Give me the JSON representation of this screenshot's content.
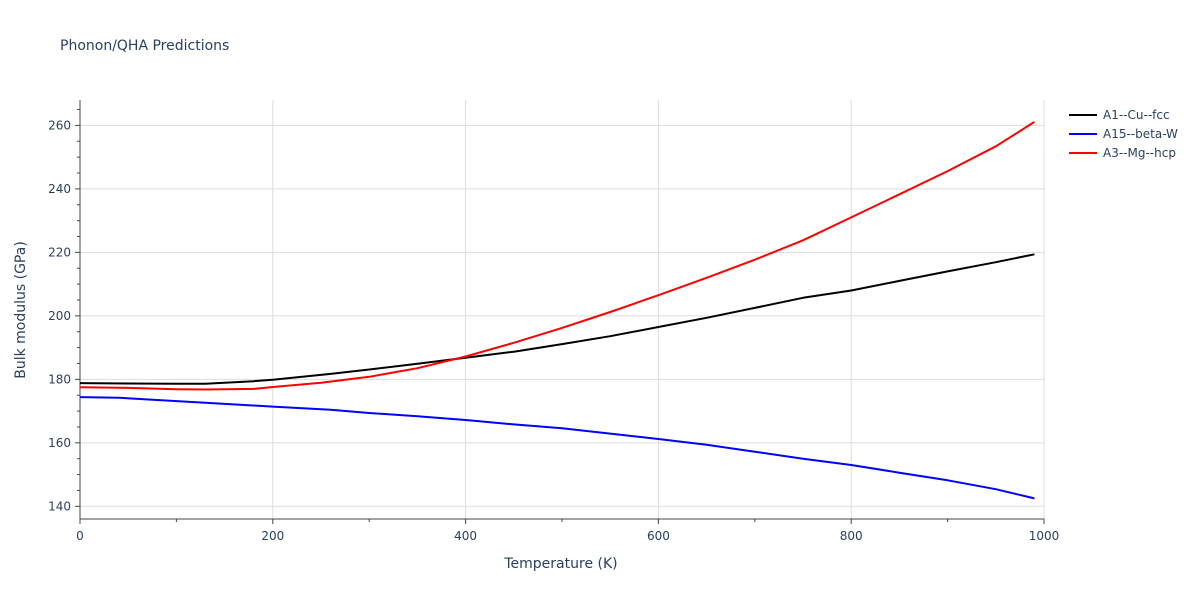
{
  "chart_data": {
    "type": "line",
    "title": "Phonon/QHA Predictions",
    "xlabel": "Temperature (K)",
    "ylabel": "Bulk modulus (GPa)",
    "xlim": [
      0,
      1000
    ],
    "ylim": [
      136,
      268
    ],
    "x_ticks": [
      0,
      200,
      400,
      600,
      800,
      1000
    ],
    "y_ticks": [
      140,
      160,
      180,
      200,
      220,
      240,
      260
    ],
    "grid": true,
    "legend_position": "top-right",
    "series": [
      {
        "name": "A1--Cu--fcc",
        "color": "#000000",
        "points": [
          [
            0,
            178.8
          ],
          [
            50,
            178.7
          ],
          [
            100,
            178.6
          ],
          [
            130,
            178.6
          ],
          [
            180,
            179.4
          ],
          [
            200,
            179.9
          ],
          [
            260,
            181.7
          ],
          [
            300,
            183.1
          ],
          [
            350,
            184.9
          ],
          [
            400,
            186.8
          ],
          [
            450,
            188.7
          ],
          [
            500,
            191.1
          ],
          [
            550,
            193.6
          ],
          [
            600,
            196.5
          ],
          [
            650,
            199.4
          ],
          [
            700,
            202.5
          ],
          [
            750,
            205.7
          ],
          [
            800,
            208.0
          ],
          [
            850,
            211.0
          ],
          [
            900,
            214.0
          ],
          [
            950,
            216.9
          ],
          [
            990,
            219.4
          ]
        ]
      },
      {
        "name": "A15--beta-W",
        "color": "#0000ff",
        "points": [
          [
            0,
            174.4
          ],
          [
            40,
            174.2
          ],
          [
            80,
            173.5
          ],
          [
            130,
            172.6
          ],
          [
            200,
            171.4
          ],
          [
            260,
            170.4
          ],
          [
            300,
            169.4
          ],
          [
            350,
            168.4
          ],
          [
            400,
            167.2
          ],
          [
            450,
            165.8
          ],
          [
            500,
            164.6
          ],
          [
            550,
            162.9
          ],
          [
            600,
            161.2
          ],
          [
            650,
            159.4
          ],
          [
            700,
            157.2
          ],
          [
            750,
            155.0
          ],
          [
            800,
            153.0
          ],
          [
            850,
            150.6
          ],
          [
            900,
            148.2
          ],
          [
            950,
            145.4
          ],
          [
            990,
            142.5
          ]
        ]
      },
      {
        "name": "A3--Mg--hcp",
        "color": "#ff0000",
        "points": [
          [
            0,
            177.5
          ],
          [
            50,
            177.3
          ],
          [
            100,
            176.9
          ],
          [
            130,
            176.8
          ],
          [
            180,
            177.0
          ],
          [
            200,
            177.6
          ],
          [
            250,
            178.9
          ],
          [
            300,
            180.8
          ],
          [
            350,
            183.5
          ],
          [
            400,
            187.2
          ],
          [
            450,
            191.5
          ],
          [
            500,
            196.2
          ],
          [
            550,
            201.2
          ],
          [
            600,
            206.5
          ],
          [
            650,
            212.0
          ],
          [
            700,
            217.7
          ],
          [
            750,
            223.8
          ],
          [
            800,
            231.0
          ],
          [
            850,
            238.3
          ],
          [
            900,
            245.6
          ],
          [
            950,
            253.4
          ],
          [
            990,
            261.1
          ]
        ]
      }
    ]
  }
}
